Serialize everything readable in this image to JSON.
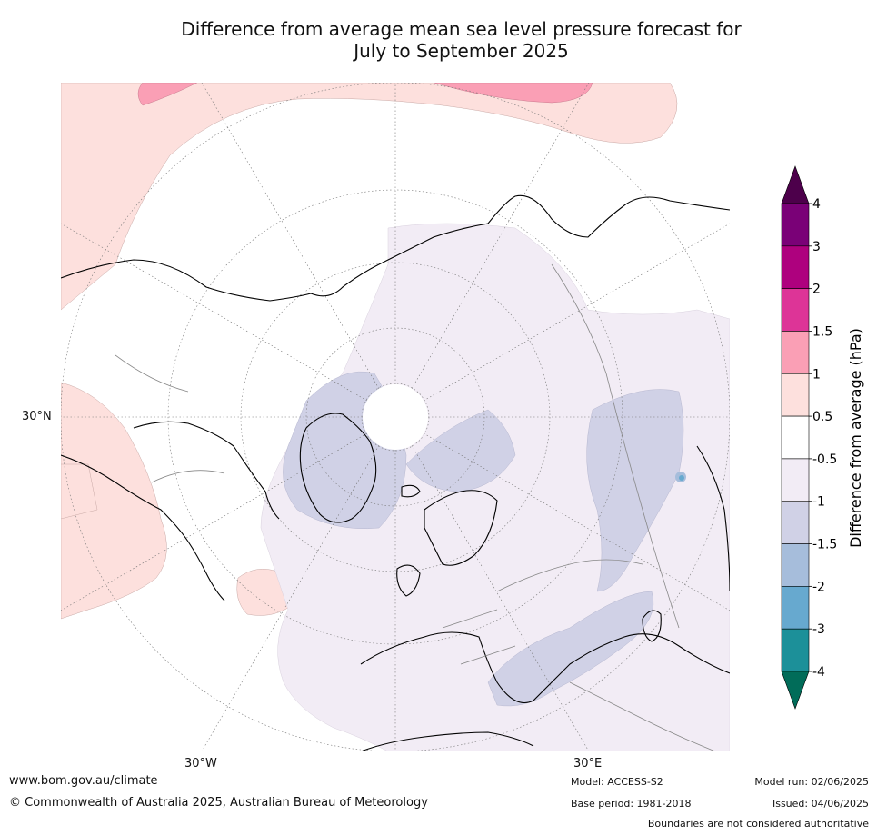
{
  "title": {
    "line1": "Difference from average mean sea level pressure forecast for",
    "line2": "July to September 2025"
  },
  "map": {
    "projection": "north polar stereographic",
    "lat_labels": [
      "30°N"
    ],
    "lon_labels": [
      "30°W",
      "30°E"
    ]
  },
  "colorbar": {
    "label": "Difference from average (hPa)",
    "ticks": [
      "4",
      "3",
      "2",
      "1.5",
      "1",
      "0.5",
      "-0.5",
      "-1",
      "-1.5",
      "-2",
      "-3",
      "-4"
    ],
    "bands": [
      {
        "from": "3",
        "to": "4",
        "color": "#7a0177"
      },
      {
        "from": "2",
        "to": "3",
        "color": "#ae017e"
      },
      {
        "from": "1.5",
        "to": "2",
        "color": "#dd3497"
      },
      {
        "from": "1",
        "to": "1.5",
        "color": "#fa9fb5"
      },
      {
        "from": "0.5",
        "to": "1",
        "color": "#fde0dd"
      },
      {
        "from": "-0.5",
        "to": "0.5",
        "color": "#ffffff"
      },
      {
        "from": "-1",
        "to": "-0.5",
        "color": "#f2ecf5"
      },
      {
        "from": "-1.5",
        "to": "-1",
        "color": "#d0d1e6"
      },
      {
        "from": "-2",
        "to": "-1.5",
        "color": "#a6bddb"
      },
      {
        "from": "-3",
        "to": "-2",
        "color": "#67a9cf"
      },
      {
        "from": "-4",
        "to": "-3",
        "color": "#1c9099"
      }
    ],
    "over_color": "#4d004b",
    "under_color": "#016c59"
  },
  "footer": {
    "url": "www.bom.gov.au/climate",
    "copyright": "© Commonwealth of Australia 2025, Australian Bureau of Meteorology",
    "model": "Model: ACCESS-S2",
    "base_period": "Base period: 1981-2018",
    "model_run": "Model run: 02/06/2025",
    "issued": "Issued: 04/06/2025",
    "disclaimer": "Boundaries are not considered authoritative"
  }
}
